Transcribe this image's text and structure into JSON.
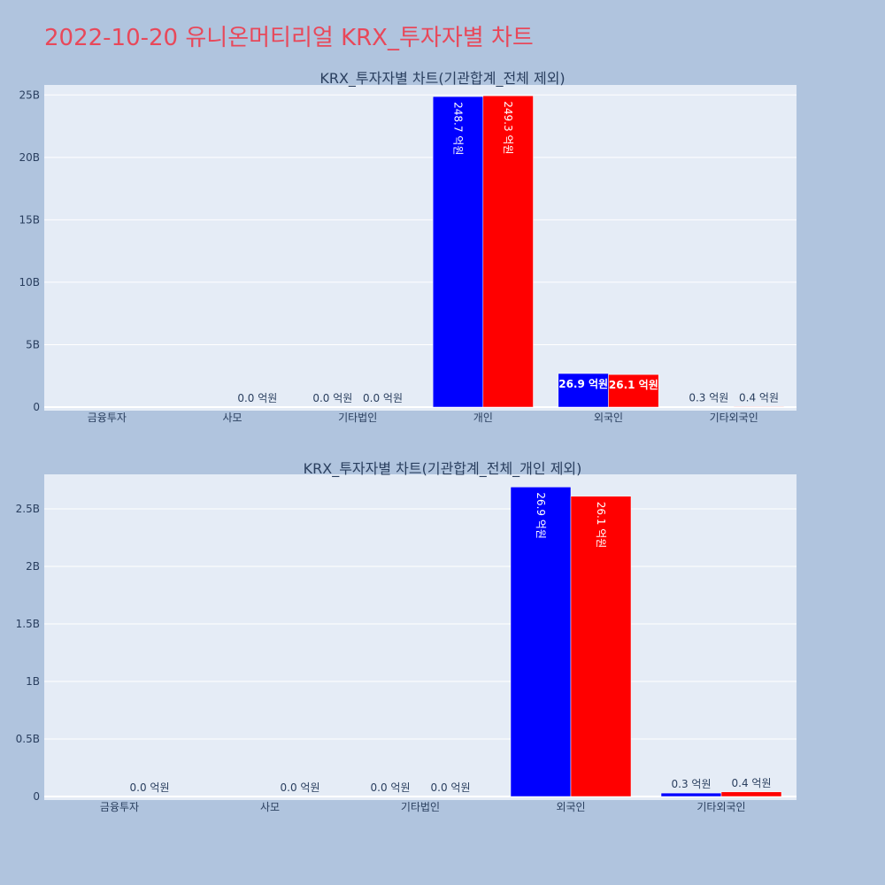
{
  "title": "2022-10-20 유니온머티리얼 KRX_투자자별 차트",
  "colors": {
    "background": "#b0c4de",
    "plot_bg": "#e5ecf6",
    "title": "#e8485a",
    "series_a": "#0000ff",
    "series_b": "#ff0000"
  },
  "chart_data": [
    {
      "type": "bar",
      "title": "KRX_투자자별 차트(기관합계_전체 제외)",
      "categories": [
        "금융투자",
        "사모",
        "기타법인",
        "개인",
        "외국인",
        "기타외국인"
      ],
      "ylim": [
        0,
        25800000000
      ],
      "yticks": [
        {
          "v": 0,
          "t": "0"
        },
        {
          "v": 5000000000,
          "t": "5B"
        },
        {
          "v": 10000000000,
          "t": "10B"
        },
        {
          "v": 15000000000,
          "t": "15B"
        },
        {
          "v": 20000000000,
          "t": "20B"
        },
        {
          "v": 25000000000,
          "t": "25B"
        }
      ],
      "series": [
        {
          "color": "#0000ff",
          "values": [
            null,
            null,
            0,
            24870000000,
            2690000000,
            30000000
          ],
          "labels": [
            "",
            "",
            "0.0 억원",
            "248.7 억원",
            "26.9 억원",
            "0.3 억원"
          ]
        },
        {
          "color": "#ff0000",
          "values": [
            null,
            0,
            0,
            24930000000,
            2610000000,
            40000000
          ],
          "labels": [
            "",
            "0.0 억원",
            "0.0 억원",
            "249.3 억원",
            "26.1 억원",
            "0.4 억원"
          ]
        }
      ],
      "grid": true,
      "legend": "none"
    },
    {
      "type": "bar",
      "title": "KRX_투자자별 차트(기관합계_전체_개인 제외)",
      "categories": [
        "금융투자",
        "사모",
        "기타법인",
        "외국인",
        "기타외국인"
      ],
      "ylim": [
        0,
        2800000000
      ],
      "yticks": [
        {
          "v": 0,
          "t": "0"
        },
        {
          "v": 500000000,
          "t": "0.5B"
        },
        {
          "v": 1000000000,
          "t": "1B"
        },
        {
          "v": 1500000000,
          "t": "1.5B"
        },
        {
          "v": 2000000000,
          "t": "2B"
        },
        {
          "v": 2500000000,
          "t": "2.5B"
        }
      ],
      "series": [
        {
          "color": "#0000ff",
          "values": [
            null,
            null,
            0,
            2690000000,
            30000000
          ],
          "labels": [
            "",
            "",
            "0.0 억원",
            "26.9 억원",
            "0.3 억원"
          ]
        },
        {
          "color": "#ff0000",
          "values": [
            0,
            0,
            0,
            2610000000,
            40000000
          ],
          "labels": [
            "0.0 억원",
            "0.0 억원",
            "0.0 억원",
            "26.1 억원",
            "0.4 억원"
          ]
        }
      ],
      "grid": true,
      "legend": "none"
    }
  ]
}
